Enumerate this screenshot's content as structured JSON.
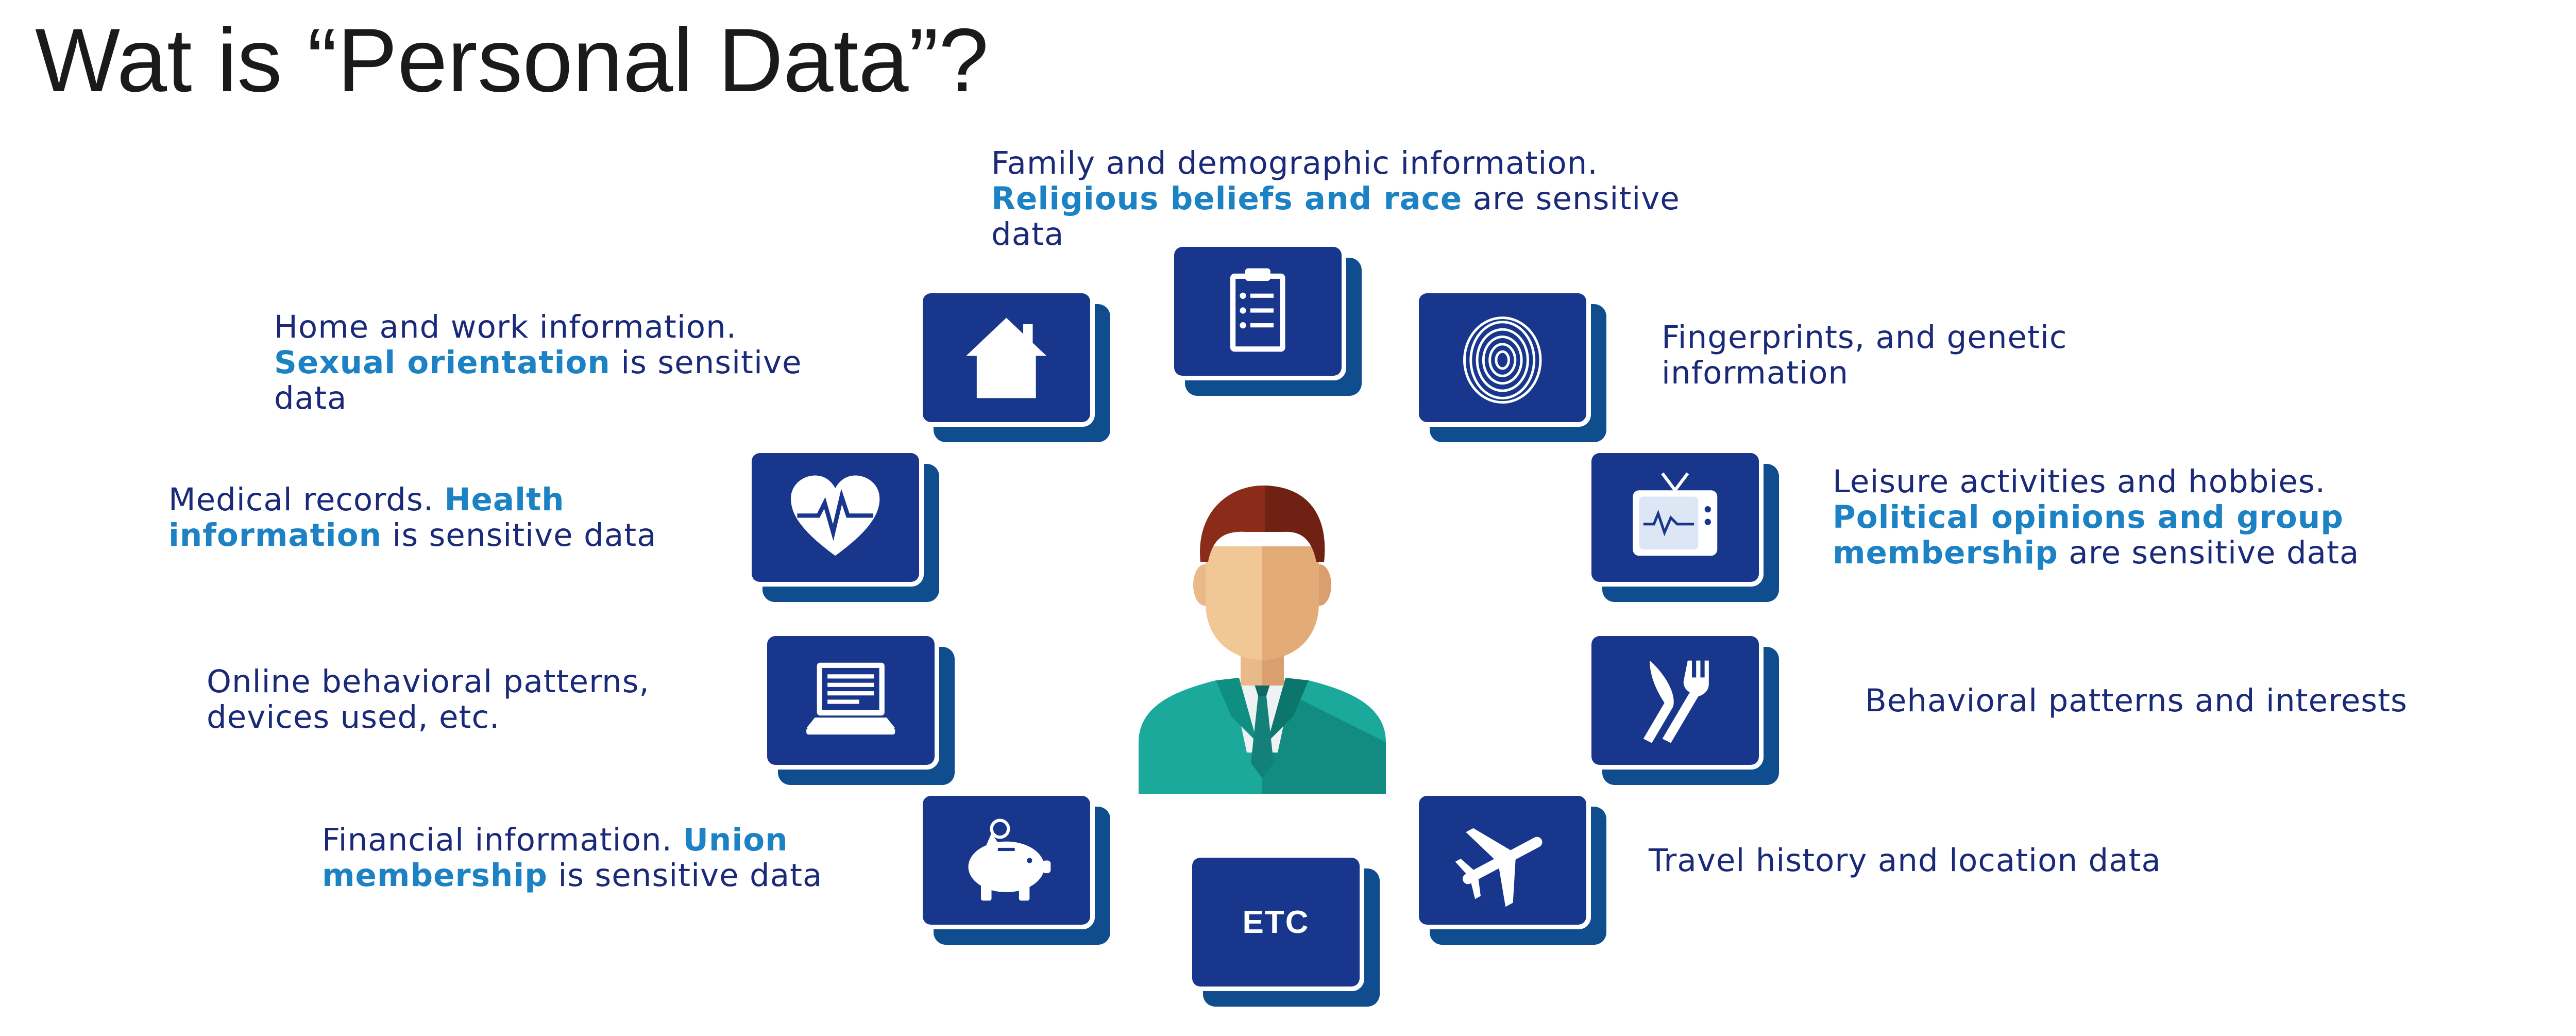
{
  "title": "Wat is “Personal Data”?",
  "items": {
    "family": {
      "line1": "Family and demographic information.",
      "line2_hl": "Religious beliefs and race",
      "line2_rest": " are sensitive",
      "line3": "data",
      "icon": "clipboard-icon"
    },
    "home": {
      "line1": "Home and work information.",
      "line2_hl": "Sexual orientation",
      "line2_rest": " is sensitive",
      "line3": "data",
      "icon": "house-icon"
    },
    "fingerprint": {
      "line1": "Fingerprints, and genetic",
      "line2": "information",
      "icon": "fingerprint-icon"
    },
    "medical": {
      "line1_plain": "Medical records. ",
      "line1_hl": "Health",
      "line2_hl": "information",
      "line2_rest": " is sensitive data",
      "icon": "heart-icon"
    },
    "leisure": {
      "line1": "Leisure activities and hobbies.",
      "line2_hl": "Political opinions and group",
      "line3_hl": "membership",
      "line3_rest": " are sensitive data",
      "icon": "tv-icon"
    },
    "online": {
      "line1": "Online behavioral patterns,",
      "line2": "devices used, etc.",
      "icon": "laptop-icon"
    },
    "behavioral": {
      "line1": "Behavioral patterns and interests",
      "icon": "knife-fork-icon"
    },
    "financial": {
      "line1_plain": "Financial information. ",
      "line1_hl": "Union",
      "line2_hl": "membership",
      "line2_rest": " is sensitive data",
      "icon": "piggy-bank-icon"
    },
    "travel": {
      "line1": "Travel history and location data",
      "icon": "airplane-icon"
    },
    "etc": {
      "label": "ETC"
    }
  },
  "colors": {
    "label_text": "#1a2a78",
    "highlight": "#1c82c4",
    "tile": "#17368c",
    "tile_shadow": "#0f4d8f",
    "title_text": "#1a1a1a"
  }
}
